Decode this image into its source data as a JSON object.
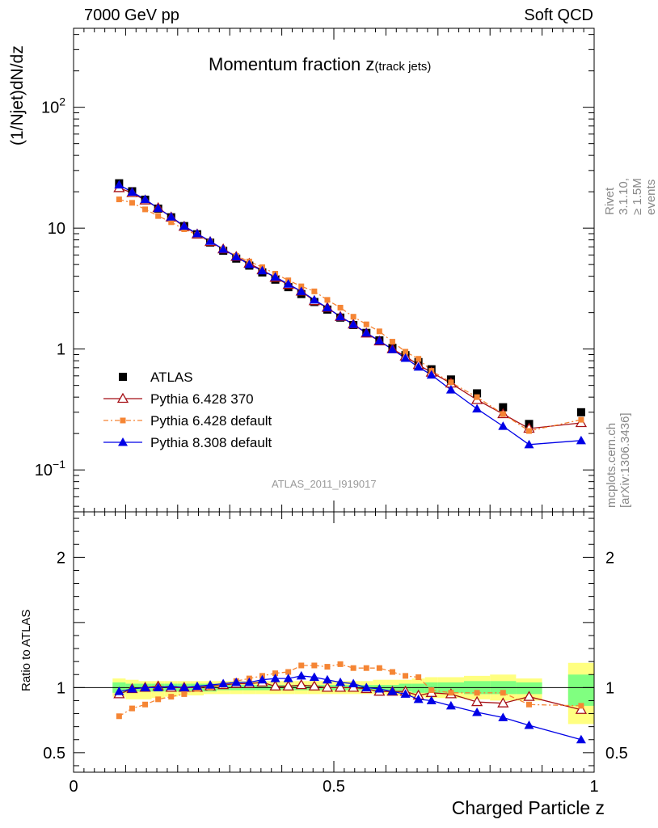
{
  "header": {
    "left": "7000 GeV pp",
    "right": "Soft QCD"
  },
  "title": {
    "main": "Momentum fraction z",
    "sub": "(track jets)"
  },
  "side_labels": {
    "rivet": "Rivet 3.1.10, ≥ 1.5M events",
    "source": "mcplots.cern.ch [arXiv:1306.3436]"
  },
  "analysis_id": "ATLAS_2011_I919017",
  "chart_data": [
    {
      "type": "line",
      "panel": "main",
      "ylabel": "(1/Njet)dN/dz",
      "yscale": "log",
      "ylim": [
        0.045,
        450
      ],
      "xlim": [
        0,
        1
      ],
      "ytick_labels": [
        "10^-1",
        "1",
        "10",
        "10^2"
      ],
      "legend": [
        "ATLAS",
        "Pythia 6.428 370",
        "Pythia 6.428 default",
        "Pythia 8.308 default"
      ],
      "legend_position": "lower-left",
      "colors": {
        "ATLAS": "#000000",
        "Pythia 6.428 370": "#a50f15",
        "Pythia 6.428 default": "#f58534",
        "Pythia 8.308 default": "#0000e6"
      },
      "x": [
        0.0875,
        0.1125,
        0.1375,
        0.1625,
        0.1875,
        0.2125,
        0.2375,
        0.2625,
        0.2875,
        0.3125,
        0.3375,
        0.3625,
        0.3875,
        0.4125,
        0.4375,
        0.4625,
        0.4875,
        0.5125,
        0.5375,
        0.5625,
        0.5875,
        0.6125,
        0.6375,
        0.6625,
        0.6875,
        0.725,
        0.775,
        0.825,
        0.875,
        0.975
      ],
      "series": [
        {
          "name": "ATLAS",
          "marker": "square",
          "values": [
            23.5,
            20.2,
            17.2,
            14.5,
            12.3,
            10.4,
            8.9,
            7.6,
            6.5,
            5.6,
            4.9,
            4.3,
            3.75,
            3.25,
            2.85,
            2.45,
            2.12,
            1.82,
            1.58,
            1.36,
            1.18,
            1.02,
            0.89,
            0.78,
            0.68,
            0.56,
            0.43,
            0.33,
            0.24,
            0.3
          ]
        },
        {
          "name": "Pythia 6.428 370",
          "marker": "open-triangle",
          "values": [
            21.5,
            19.6,
            17.0,
            14.7,
            12.3,
            10.3,
            8.9,
            7.7,
            6.7,
            5.8,
            5.1,
            4.5,
            3.9,
            3.4,
            3.0,
            2.5,
            2.2,
            1.85,
            1.6,
            1.35,
            1.16,
            1.0,
            0.87,
            0.74,
            0.64,
            0.52,
            0.38,
            0.29,
            0.22,
            0.245
          ]
        },
        {
          "name": "Pythia 6.428 default",
          "marker": "small-square",
          "dashed": true,
          "values": [
            17.3,
            16.2,
            14.3,
            12.6,
            11.2,
            9.8,
            8.8,
            7.7,
            6.7,
            5.9,
            5.3,
            4.75,
            4.2,
            3.7,
            3.3,
            3.0,
            2.55,
            2.2,
            1.85,
            1.6,
            1.4,
            1.15,
            0.95,
            0.83,
            0.66,
            0.53,
            0.4,
            0.29,
            0.21,
            0.26
          ]
        },
        {
          "name": "Pythia 8.308 default",
          "marker": "triangle",
          "values": [
            22.8,
            19.9,
            17.3,
            14.6,
            12.4,
            10.4,
            9.0,
            7.8,
            6.7,
            5.8,
            5.0,
            4.45,
            3.95,
            3.45,
            3.0,
            2.55,
            2.2,
            1.85,
            1.6,
            1.36,
            1.17,
            0.99,
            0.84,
            0.71,
            0.61,
            0.46,
            0.32,
            0.23,
            0.162,
            0.175
          ]
        }
      ]
    },
    {
      "type": "line",
      "panel": "ratio",
      "ylabel": "Ratio to ATLAS",
      "xlabel": "Charged Particle z",
      "ylim": [
        0.35,
        2.35
      ],
      "xlim": [
        0,
        1
      ],
      "ytick_labels": [
        "0.5",
        "1",
        "2"
      ],
      "xtick_labels": [
        "0",
        "0.5",
        "1"
      ],
      "bands": {
        "edges": [
          0.075,
          0.1,
          0.125,
          0.15,
          0.175,
          0.2,
          0.225,
          0.25,
          0.275,
          0.3,
          0.325,
          0.35,
          0.375,
          0.4,
          0.425,
          0.45,
          0.475,
          0.5,
          0.525,
          0.55,
          0.575,
          0.6,
          0.625,
          0.65,
          0.675,
          0.7,
          0.75,
          0.8,
          0.85,
          0.9,
          0.95,
          1.0
        ],
        "outer": [
          [
            0.93,
            1.07
          ],
          [
            0.91,
            1.06
          ],
          [
            0.91,
            1.05
          ],
          [
            0.92,
            1.05
          ],
          [
            0.93,
            1.05
          ],
          [
            0.94,
            1.05
          ],
          [
            0.94,
            1.05
          ],
          [
            0.95,
            1.05
          ],
          [
            0.95,
            1.05
          ],
          [
            0.95,
            1.05
          ],
          [
            0.95,
            1.05
          ],
          [
            0.95,
            1.05
          ],
          [
            0.95,
            1.05
          ],
          [
            0.95,
            1.05
          ],
          [
            0.95,
            1.05
          ],
          [
            0.95,
            1.05
          ],
          [
            0.95,
            1.05
          ],
          [
            0.95,
            1.05
          ],
          [
            0.95,
            1.05
          ],
          [
            0.95,
            1.05
          ],
          [
            0.95,
            1.06
          ],
          [
            0.94,
            1.06
          ],
          [
            0.94,
            1.06
          ],
          [
            0.93,
            1.07
          ],
          [
            0.92,
            1.08
          ],
          [
            0.92,
            1.08
          ],
          [
            0.91,
            1.09
          ],
          [
            0.9,
            1.1
          ],
          [
            0.9,
            1.07
          ],
          null,
          [
            0.72,
            1.19
          ]
        ],
        "inner": [
          [
            0.96,
            1.04
          ],
          [
            0.97,
            1.03
          ],
          [
            0.97,
            1.03
          ],
          [
            0.97,
            1.03
          ],
          [
            0.97,
            1.03
          ],
          [
            0.97,
            1.03
          ],
          [
            0.97,
            1.03
          ],
          [
            0.97,
            1.03
          ],
          [
            0.98,
            1.03
          ],
          [
            0.98,
            1.02
          ],
          [
            0.98,
            1.02
          ],
          [
            0.98,
            1.02
          ],
          [
            0.98,
            1.02
          ],
          [
            0.98,
            1.02
          ],
          [
            0.98,
            1.02
          ],
          [
            0.98,
            1.02
          ],
          [
            0.98,
            1.02
          ],
          [
            0.98,
            1.02
          ],
          [
            0.98,
            1.02
          ],
          [
            0.98,
            1.02
          ],
          [
            0.97,
            1.02
          ],
          [
            0.97,
            1.02
          ],
          [
            0.97,
            1.03
          ],
          [
            0.96,
            1.03
          ],
          [
            0.96,
            1.04
          ],
          [
            0.96,
            1.04
          ],
          [
            0.95,
            1.05
          ],
          [
            0.95,
            1.05
          ],
          [
            0.95,
            1.04
          ],
          null,
          [
            0.86,
            1.1
          ]
        ]
      },
      "x": [
        0.0875,
        0.1125,
        0.1375,
        0.1625,
        0.1875,
        0.2125,
        0.2375,
        0.2625,
        0.2875,
        0.3125,
        0.3375,
        0.3625,
        0.3875,
        0.4125,
        0.4375,
        0.4625,
        0.4875,
        0.5125,
        0.5375,
        0.5625,
        0.5875,
        0.6125,
        0.6375,
        0.6625,
        0.6875,
        0.725,
        0.775,
        0.825,
        0.875,
        0.975
      ],
      "series": [
        {
          "name": "Pythia 6.428 370",
          "values": [
            0.95,
            0.99,
            1.0,
            1.01,
            1.0,
            1.0,
            1.0,
            1.01,
            1.02,
            1.03,
            1.03,
            1.04,
            1.01,
            1.01,
            1.02,
            1.01,
            1.0,
            1.0,
            1.0,
            0.99,
            0.97,
            0.97,
            0.97,
            0.94,
            0.96,
            0.95,
            0.89,
            0.88,
            0.93,
            0.83
          ]
        },
        {
          "name": "Pythia 6.428 default",
          "values": [
            0.78,
            0.84,
            0.87,
            0.91,
            0.93,
            0.95,
            0.99,
            1.0,
            1.02,
            1.05,
            1.07,
            1.09,
            1.11,
            1.12,
            1.17,
            1.17,
            1.16,
            1.18,
            1.15,
            1.15,
            1.15,
            1.12,
            1.09,
            1.08,
            0.98,
            0.96,
            0.96,
            0.96,
            0.87,
            0.86
          ]
        },
        {
          "name": "Pythia 8.308 default",
          "values": [
            0.97,
            0.99,
            1.0,
            1.0,
            1.01,
            1.0,
            1.01,
            1.02,
            1.03,
            1.04,
            1.04,
            1.06,
            1.07,
            1.07,
            1.09,
            1.08,
            1.06,
            1.04,
            1.03,
            1.0,
            0.99,
            0.97,
            0.95,
            0.91,
            0.9,
            0.86,
            0.81,
            0.77,
            0.71,
            0.6
          ]
        }
      ]
    }
  ]
}
